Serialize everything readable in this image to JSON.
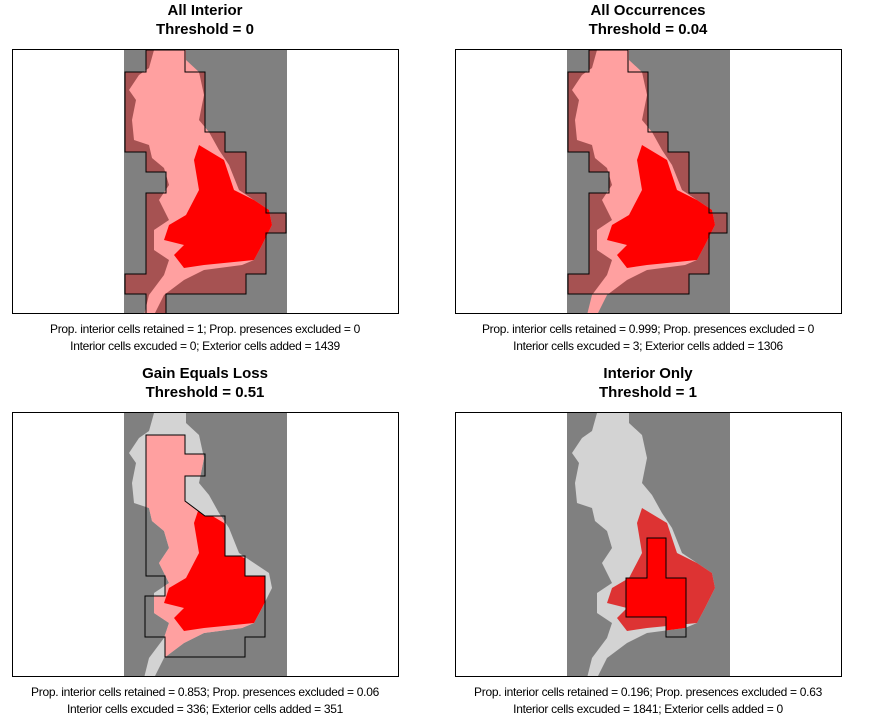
{
  "colors": {
    "background_cell": "#808080",
    "boundary_fill": "#a65252",
    "interior_absent": "#ffa0a0",
    "presence_interior": "#ff0000",
    "exterior_land": "#d3d3d3",
    "presence_exterior": "#dd3333"
  },
  "panels": [
    {
      "title": "All Interior",
      "threshold": "Threshold =  0",
      "stats_line1": "Prop. interior cells retained = 1;   Prop. presences excluded = 0",
      "stats_line2": "Interior cells excuded = 0;   Exterior cells added = 1439",
      "mode": "full"
    },
    {
      "title": "All Occurrences",
      "threshold": "Threshold =  0.04",
      "stats_line1": "Prop. interior cells retained = 0.999;   Prop. presences excluded = 0",
      "stats_line2": "Interior cells excuded = 3;   Exterior cells added = 1306",
      "mode": "full"
    },
    {
      "title": "Gain Equals Loss",
      "threshold": "Threshold =  0.51",
      "stats_line1": "Prop. interior cells retained = 0.853;   Prop. presences excluded = 0.06",
      "stats_line2": "Interior cells excuded = 336;   Exterior cells added = 351",
      "mode": "mid"
    },
    {
      "title": "Interior Only",
      "threshold": "Threshold =  1",
      "stats_line1": "Prop. interior cells retained = 0.196;   Prop. presences excluded = 0.63",
      "stats_line2": "Interior cells excuded = 1841;   Exterior cells added = 0",
      "mode": "small"
    }
  ]
}
